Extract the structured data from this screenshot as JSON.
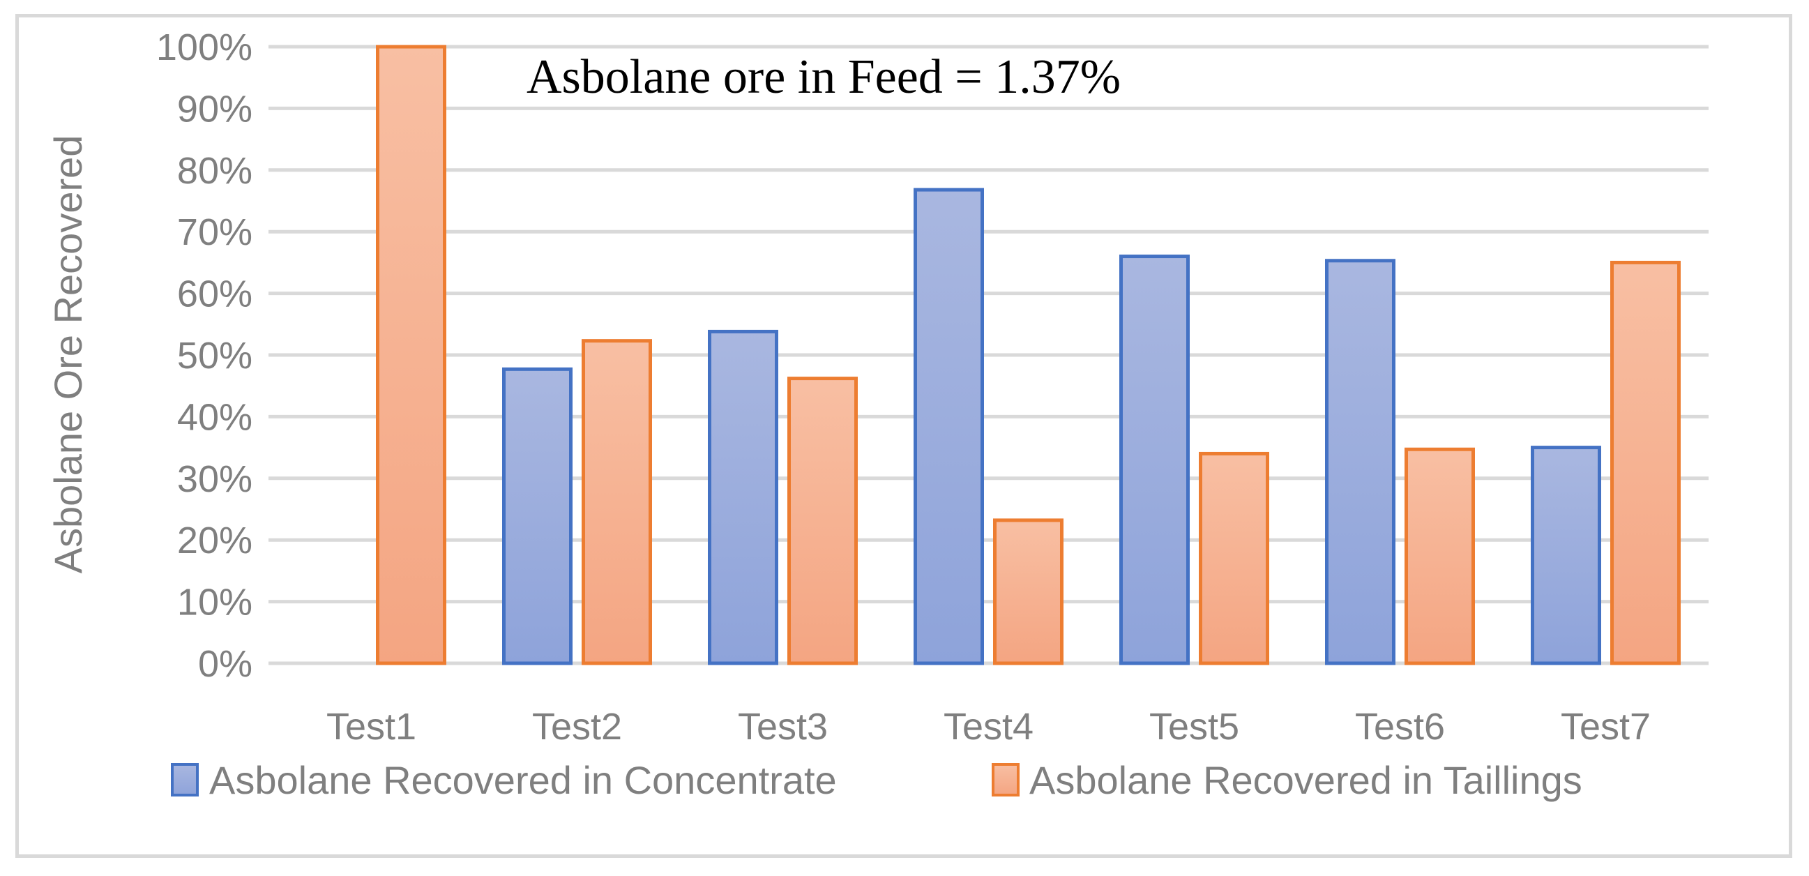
{
  "chart_data": {
    "type": "bar",
    "categories": [
      "Test1",
      "Test2",
      "Test3",
      "Test4",
      "Test5",
      "Test6",
      "Test7"
    ],
    "series": [
      {
        "name": "Asbolane Recovered in Concentrate",
        "values": [
          0,
          47.7,
          53.8,
          76.8,
          66.0,
          65.3,
          35.0
        ],
        "fill_top": "#a9b7e0",
        "fill_bottom": "#8ea3da",
        "stroke": "#4472c4"
      },
      {
        "name": "Asbolane Recovered in Taillings",
        "values": [
          100,
          52.3,
          46.2,
          23.2,
          34.0,
          34.7,
          65.0
        ],
        "fill_top": "#f8bfa3",
        "fill_bottom": "#f4a582",
        "stroke": "#ed7d31"
      }
    ],
    "title": "",
    "xlabel": "",
    "ylabel": "Asbolane Ore Recovered",
    "ylim": [
      0,
      100
    ],
    "yticks": [
      "0%",
      "10%",
      "20%",
      "30%",
      "40%",
      "50%",
      "60%",
      "70%",
      "80%",
      "90%",
      "100%"
    ],
    "annotation": "Asbolane ore in Feed = 1.37%",
    "grid": true,
    "legend_position": "bottom",
    "colors": {
      "grid": "#d9d9d9",
      "text": "#7f7f7f",
      "frame": "#d9d9d9"
    }
  }
}
